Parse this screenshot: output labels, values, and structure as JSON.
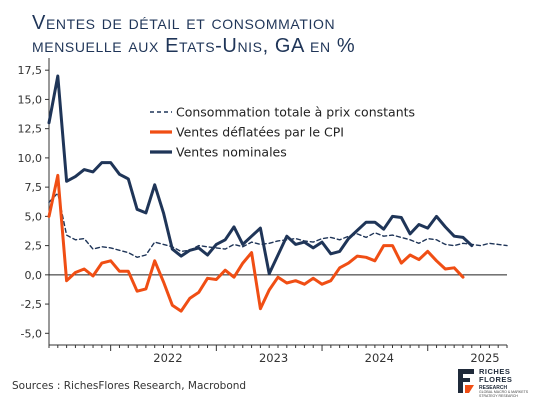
{
  "title": "Ventes de détail et consommation\nmensuelle aux Etats-Unis, GA en %",
  "source": "Sources : RichesFlores Research, Macrobond",
  "logo": {
    "name_line1": "RICHES",
    "name_line2": "FLORES",
    "name_line3": "RESEARCH",
    "tagline": "GLOBAL MACRO & MARKETS STRATEGY RESEARCH"
  },
  "chart_data": {
    "type": "line",
    "ylim": [
      -6.0,
      18.2
    ],
    "yticks": [
      -5.0,
      -2.5,
      0.0,
      2.5,
      5.0,
      7.5,
      10.0,
      12.5,
      15.0,
      17.5
    ],
    "ytick_labels": [
      "-5,0",
      "-2,5",
      "0,0",
      "2,5",
      "5,0",
      "7,5",
      "10,0",
      "12,5",
      "15,0",
      "17,5"
    ],
    "x_start": "2021-06",
    "x_end": "2025-10",
    "year_labels": [
      "2022",
      "2023",
      "2024",
      "2025"
    ],
    "grid": false,
    "legend_position": "top-center",
    "series": [
      {
        "name": "Consommation totale à prix constants",
        "color": "#1f3558",
        "style": "dashed",
        "values": [
          6.2,
          7.0,
          3.4,
          3.0,
          3.1,
          2.2,
          2.4,
          2.3,
          2.1,
          1.9,
          1.5,
          1.7,
          2.8,
          2.6,
          2.4,
          2.0,
          2.1,
          2.5,
          2.4,
          2.3,
          2.2,
          2.6,
          2.4,
          2.8,
          2.6,
          2.7,
          2.9,
          3.0,
          3.1,
          2.9,
          2.8,
          3.1,
          3.2,
          3.0,
          3.3,
          3.5,
          3.2,
          3.6,
          3.3,
          3.4,
          3.2,
          3.0,
          2.7,
          3.1,
          3.0,
          2.6,
          2.5,
          2.7,
          2.6,
          2.5,
          2.7,
          2.6,
          2.5
        ]
      },
      {
        "name": "Ventes déflatées par le CPI",
        "color": "#f04e14",
        "style": "solid",
        "values": [
          5.0,
          8.5,
          -0.5,
          0.2,
          0.5,
          -0.1,
          1.0,
          1.2,
          0.3,
          0.3,
          -1.4,
          -1.2,
          1.2,
          -0.6,
          -2.6,
          -3.1,
          -2.0,
          -1.5,
          -0.3,
          -0.4,
          0.4,
          -0.2,
          1.0,
          1.9,
          -2.9,
          -1.3,
          -0.2,
          -0.7,
          -0.5,
          -0.8,
          -0.3,
          -0.8,
          -0.5,
          0.6,
          1.0,
          1.6,
          1.5,
          1.2,
          2.5,
          2.5,
          1.0,
          1.7,
          1.3,
          2.0,
          1.2,
          0.5,
          0.6,
          -0.2
        ]
      },
      {
        "name": "Ventes nominales",
        "color": "#1f3558",
        "style": "solid",
        "values": [
          13.0,
          17.0,
          8.0,
          8.4,
          9.0,
          8.8,
          9.6,
          9.6,
          8.6,
          8.2,
          5.6,
          5.3,
          7.7,
          5.3,
          2.2,
          1.6,
          2.1,
          2.3,
          1.7,
          2.6,
          3.0,
          4.1,
          2.6,
          3.3,
          4.0,
          0.1,
          1.7,
          3.3,
          2.6,
          2.8,
          2.3,
          2.8,
          1.8,
          2.0,
          3.1,
          3.8,
          4.5,
          4.5,
          3.9,
          5.0,
          4.9,
          3.5,
          4.3,
          4.0,
          5.0,
          4.1,
          3.3,
          3.2,
          2.5
        ]
      }
    ]
  }
}
